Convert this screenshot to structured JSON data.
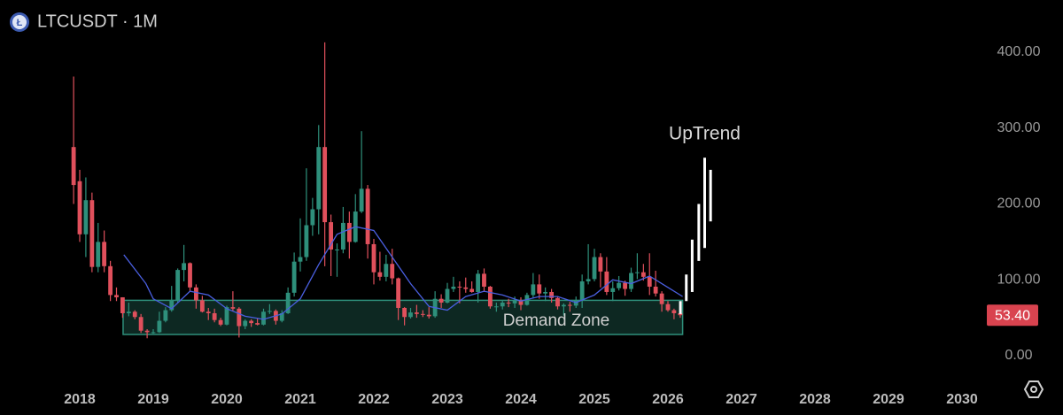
{
  "chart_data": {
    "type": "candlestick",
    "title": "LTCUSDT · 1M",
    "x": [
      2017.917,
      2018.0,
      2018.083,
      2018.167,
      2018.25,
      2018.333,
      2018.417,
      2018.5,
      2018.583,
      2018.667,
      2018.75,
      2018.833,
      2018.917,
      2019.0,
      2019.083,
      2019.167,
      2019.25,
      2019.333,
      2019.417,
      2019.5,
      2019.583,
      2019.667,
      2019.75,
      2019.833,
      2019.917,
      2020.0,
      2020.083,
      2020.167,
      2020.25,
      2020.333,
      2020.417,
      2020.5,
      2020.583,
      2020.667,
      2020.75,
      2020.833,
      2020.917,
      2021.0,
      2021.083,
      2021.167,
      2021.25,
      2021.333,
      2021.417,
      2021.5,
      2021.583,
      2021.667,
      2021.75,
      2021.833,
      2021.917,
      2022.0,
      2022.083,
      2022.167,
      2022.25,
      2022.333,
      2022.417,
      2022.5,
      2022.583,
      2022.667,
      2022.75,
      2022.833,
      2022.917,
      2023.0,
      2023.083,
      2023.167,
      2023.25,
      2023.333,
      2023.417,
      2023.5,
      2023.583,
      2023.667,
      2023.75,
      2023.833,
      2023.917,
      2024.0,
      2024.083,
      2024.167,
      2024.25,
      2024.333,
      2024.417,
      2024.5,
      2024.583,
      2024.667,
      2024.75,
      2024.833,
      2024.917,
      2025.0,
      2025.083,
      2025.167,
      2025.25,
      2025.333,
      2025.417,
      2025.5,
      2025.583,
      2025.667,
      2025.75,
      2025.833,
      2025.917,
      2026.0,
      2026.083,
      2026.167
    ],
    "open": [
      275,
      230,
      160,
      205,
      117,
      150,
      118,
      80,
      77,
      56,
      58,
      51,
      33,
      31,
      31,
      46,
      60,
      73,
      113,
      122,
      90,
      73,
      58,
      56,
      47,
      41,
      64,
      62,
      39,
      46,
      43,
      41,
      58,
      59,
      46,
      56,
      83,
      124,
      130,
      172,
      193,
      275,
      176,
      140,
      140,
      175,
      150,
      190,
      220,
      147,
      110,
      104,
      121,
      102,
      63,
      51,
      57,
      55,
      54,
      52,
      75,
      70,
      88,
      91,
      90,
      88,
      84,
      108,
      91,
      65,
      65,
      70,
      69,
      73,
      67,
      80,
      94,
      82,
      84,
      76,
      65,
      67,
      66,
      73,
      98,
      101,
      130,
      111,
      84,
      89,
      96,
      88,
      109,
      110,
      104,
      91,
      82,
      68,
      60,
      56
    ],
    "high": [
      368,
      245,
      235,
      215,
      175,
      165,
      125,
      90,
      77,
      70,
      60,
      55,
      35,
      35,
      58,
      64,
      92,
      115,
      146,
      123,
      94,
      79,
      63,
      62,
      50,
      66,
      85,
      64,
      48,
      48,
      49,
      62,
      68,
      61,
      60,
      90,
      136,
      181,
      247,
      208,
      304,
      413,
      186,
      148,
      196,
      190,
      213,
      296,
      225,
      154,
      137,
      133,
      141,
      103,
      64,
      63,
      67,
      60,
      64,
      85,
      81,
      96,
      104,
      98,
      103,
      98,
      113,
      115,
      92,
      70,
      73,
      75,
      78,
      77,
      83,
      109,
      107,
      90,
      88,
      78,
      69,
      71,
      78,
      107,
      147,
      141,
      135,
      130,
      98,
      105,
      99,
      116,
      135,
      121,
      135,
      112,
      85,
      72,
      62,
      60
    ],
    "low": [
      200,
      150,
      130,
      110,
      110,
      110,
      72,
      72,
      50,
      52,
      48,
      30,
      23,
      29,
      30,
      44,
      58,
      70,
      98,
      85,
      62,
      57,
      47,
      44,
      39,
      40,
      59,
      24,
      35,
      38,
      40,
      40,
      55,
      41,
      44,
      55,
      78,
      111,
      125,
      158,
      160,
      118,
      105,
      104,
      135,
      128,
      149,
      188,
      128,
      94,
      99,
      98,
      94,
      47,
      40,
      49,
      50,
      51,
      49,
      50,
      63,
      69,
      84,
      69,
      83,
      83,
      70,
      84,
      62,
      58,
      61,
      64,
      63,
      60,
      66,
      76,
      75,
      72,
      70,
      61,
      53,
      58,
      63,
      63,
      94,
      98,
      90,
      80,
      72,
      86,
      79,
      84,
      101,
      99,
      80,
      78,
      58,
      58,
      48,
      50
    ],
    "close": [
      225,
      160,
      205,
      117,
      150,
      118,
      80,
      77,
      56,
      58,
      51,
      33,
      31,
      31,
      46,
      60,
      73,
      113,
      122,
      90,
      73,
      58,
      56,
      47,
      41,
      64,
      62,
      39,
      46,
      43,
      41,
      58,
      59,
      46,
      56,
      83,
      124,
      130,
      172,
      193,
      275,
      176,
      140,
      140,
      175,
      150,
      190,
      220,
      147,
      110,
      104,
      121,
      102,
      63,
      51,
      57,
      55,
      54,
      52,
      75,
      70,
      88,
      91,
      90,
      88,
      84,
      108,
      91,
      65,
      65,
      70,
      69,
      73,
      67,
      80,
      94,
      82,
      84,
      76,
      65,
      67,
      66,
      73,
      98,
      101,
      130,
      111,
      84,
      89,
      96,
      88,
      109,
      110,
      104,
      91,
      82,
      68,
      60,
      56,
      53.4
    ],
    "up_color": "#2e8f7b",
    "down_color": "#e0505c",
    "indicator": {
      "color": "#4a5fe0",
      "x": [
        2018.6,
        2018.9,
        2019.0,
        2019.25,
        2019.5,
        2019.75,
        2020.0,
        2020.25,
        2020.5,
        2020.75,
        2021.0,
        2021.25,
        2021.5,
        2021.75,
        2022.0,
        2022.25,
        2022.5,
        2022.75,
        2023.0,
        2023.25,
        2023.5,
        2023.75,
        2024.0,
        2024.25,
        2024.5,
        2024.75,
        2025.0,
        2025.25,
        2025.5,
        2025.75,
        2026.0,
        2026.2
      ],
      "values": [
        133,
        95,
        75,
        62,
        85,
        80,
        62,
        52,
        48,
        55,
        75,
        120,
        160,
        170,
        165,
        130,
        95,
        65,
        60,
        78,
        85,
        80,
        72,
        78,
        78,
        70,
        80,
        100,
        95,
        105,
        90,
        78
      ]
    },
    "zone": {
      "label": "Demand Zone",
      "x": [
        2018.59,
        2026.2
      ],
      "y": [
        28,
        73
      ],
      "color": "#2e8f7b"
    },
    "projection": {
      "label": "UpTrend",
      "color": "#ffffff",
      "x": [
        2026.17,
        2026.25,
        2026.33,
        2026.42,
        2026.5,
        2026.58
      ],
      "low": [
        55,
        72,
        84,
        125,
        142,
        177
      ],
      "high": [
        72,
        107,
        153,
        200,
        261,
        245
      ]
    },
    "last_price": 53.4,
    "last_price_label": "53.40",
    "xlim": [
      2017.4,
      2031.2
    ],
    "xticks": [
      2018,
      2019,
      2020,
      2021,
      2022,
      2023,
      2024,
      2025,
      2026,
      2027,
      2028,
      2029,
      2030
    ],
    "ylim": [
      -20,
      460
    ],
    "yticks": [
      {
        "value": 0,
        "label": "0.00"
      },
      {
        "value": 100,
        "label": "100.00"
      },
      {
        "value": 200,
        "label": "200.00"
      },
      {
        "value": 300,
        "label": "300.00"
      },
      {
        "value": 400,
        "label": "400.00"
      }
    ]
  }
}
